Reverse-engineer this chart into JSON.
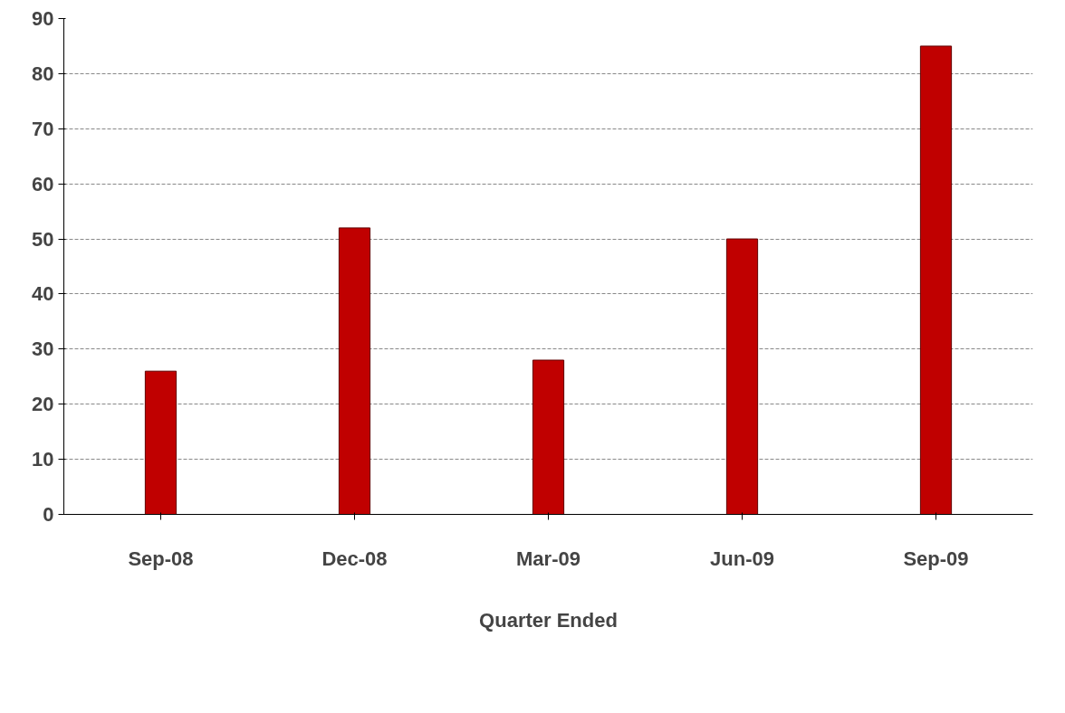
{
  "chart_data": {
    "type": "bar",
    "xlabel": "Quarter Ended",
    "categories": [
      "Sep-08",
      "Dec-08",
      "Mar-09",
      "Jun-09",
      "Sep-09"
    ],
    "values": [
      26,
      52,
      28,
      50,
      85
    ],
    "color": "#c00000",
    "ylim": [
      0,
      90
    ],
    "yticks": [
      0,
      10,
      20,
      30,
      40,
      50,
      60,
      70,
      80,
      90
    ],
    "grid": "y"
  }
}
